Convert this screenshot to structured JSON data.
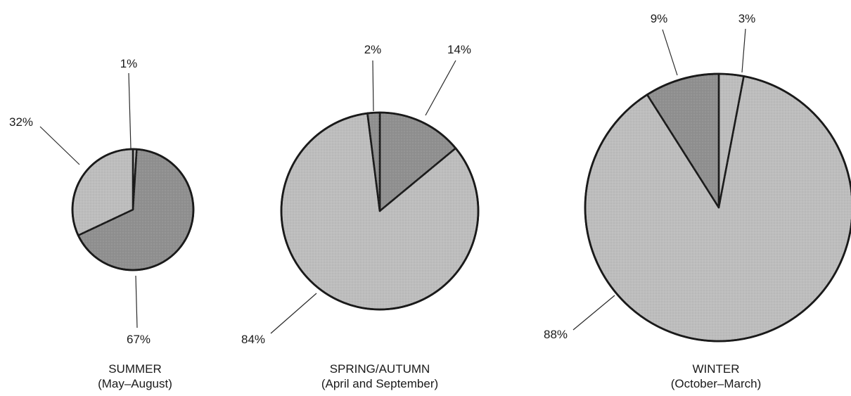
{
  "chart_data": [
    {
      "type": "pie",
      "title": "SUMMER",
      "subtitle": "(May–August)",
      "slices": [
        {
          "label": "1%",
          "value": 1,
          "color": "#bdbdbd"
        },
        {
          "label": "67%",
          "value": 67,
          "color": "#8f8f8f"
        },
        {
          "label": "32%",
          "value": 32,
          "color": "#bdbdbd"
        }
      ]
    },
    {
      "type": "pie",
      "title": "SPRING/AUTUMN",
      "subtitle": "(April and September)",
      "slices": [
        {
          "label": "14%",
          "value": 14,
          "color": "#8f8f8f"
        },
        {
          "label": "84%",
          "value": 84,
          "color": "#bdbdbd"
        },
        {
          "label": "2%",
          "value": 2,
          "color": "#8f8f8f"
        }
      ]
    },
    {
      "type": "pie",
      "title": "WINTER",
      "subtitle": "(October–March)",
      "slices": [
        {
          "label": "3%",
          "value": 3,
          "color": "#bdbdbd"
        },
        {
          "label": "88%",
          "value": 88,
          "color": "#bdbdbd"
        },
        {
          "label": "9%",
          "value": 9,
          "color": "#8f8f8f"
        }
      ]
    }
  ]
}
